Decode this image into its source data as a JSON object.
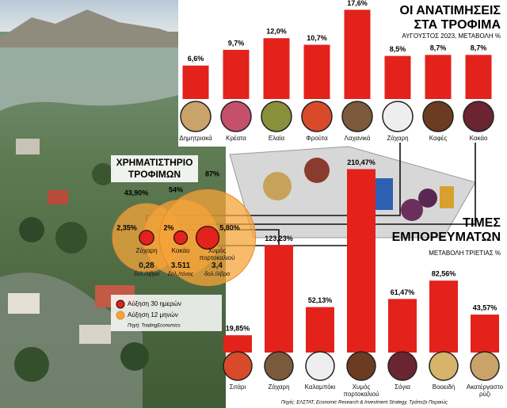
{
  "chart_data": [
    {
      "type": "bar",
      "title": [
        "ΟΙ ΑΝΑΤΙΜΗΣΕΙΣ",
        "ΣΤΑ ΤΡΟΦΙΜΑ"
      ],
      "subtitle": "ΑΥΓΟΥΣΤΟΣ 2023, ΜΕΤΑΒΟΛΗ %",
      "categories": [
        "Δημητριακά",
        "Κρέατα",
        "Ελαία",
        "Φρούτα",
        "Λαχανικά",
        "Ζάχαρη",
        "Καφές",
        "Κακάο"
      ],
      "values": [
        6.6,
        9.7,
        12.0,
        10.7,
        17.6,
        8.5,
        8.7,
        8.7
      ],
      "value_labels": [
        "6,6%",
        "9,7%",
        "12,0%",
        "10,7%",
        "17,6%",
        "8,5%",
        "8,7%",
        "8,7%"
      ],
      "color": "#e3221b"
    },
    {
      "type": "bar",
      "title": [
        "ΤΙΜΕΣ",
        "ΕΜΠΟΡΕΥΜΑΤΩΝ"
      ],
      "subtitle": "ΜΕΤΑΒΟΛΗ ΤΡΙΕΤΙΑΣ %",
      "categories": [
        "Σιτάρι",
        "Ζάχαρη",
        "Καλαμπόκι",
        "Χυμός πορτοκαλιού",
        "Σόγια",
        "Βοοειδή",
        "Ακατέργαστο ρύζι"
      ],
      "values": [
        19.85,
        123.23,
        52.13,
        210.47,
        61.47,
        82.56,
        43.57
      ],
      "value_labels": [
        "19,85%",
        "123,23%",
        "52,13%",
        "210,47%",
        "61,47%",
        "82,56%",
        "43,57%"
      ],
      "color": "#e3221b"
    }
  ],
  "exchange": {
    "title": [
      "ΧΡΗΜΑΤΙΣΤΗΡΙΟ",
      "ΤΡΟΦΙΜΩΝ"
    ],
    "items": [
      {
        "name": "Ζάχαρη",
        "month": 2.35,
        "month_label": "2,35%",
        "year": 43.9,
        "year_label": "43,90%",
        "price": "0,28",
        "unit": "δολ./λίβρα"
      },
      {
        "name": "Κακάο",
        "month": 2,
        "month_label": "2%",
        "year": 54,
        "year_label": "54%",
        "price": "3.511",
        "unit": "δολ./τόνος"
      },
      {
        "name": "Χυμός πορτοκαλιού",
        "month": 5.8,
        "month_label": "5,80%",
        "year": 87,
        "year_label": "87%",
        "price": "3,4",
        "unit": "δολ./λίβρα"
      }
    ],
    "legend": [
      "Αύξηση 30 ημερών",
      "Αύξηση 12 μηνών"
    ],
    "source": "Πηγή: TradingEconomics"
  },
  "source": "Πηγές: ΕΛΣΤΑΤ, Economic Research & Investment Strategy, Τράπεζα Πειραιώς"
}
